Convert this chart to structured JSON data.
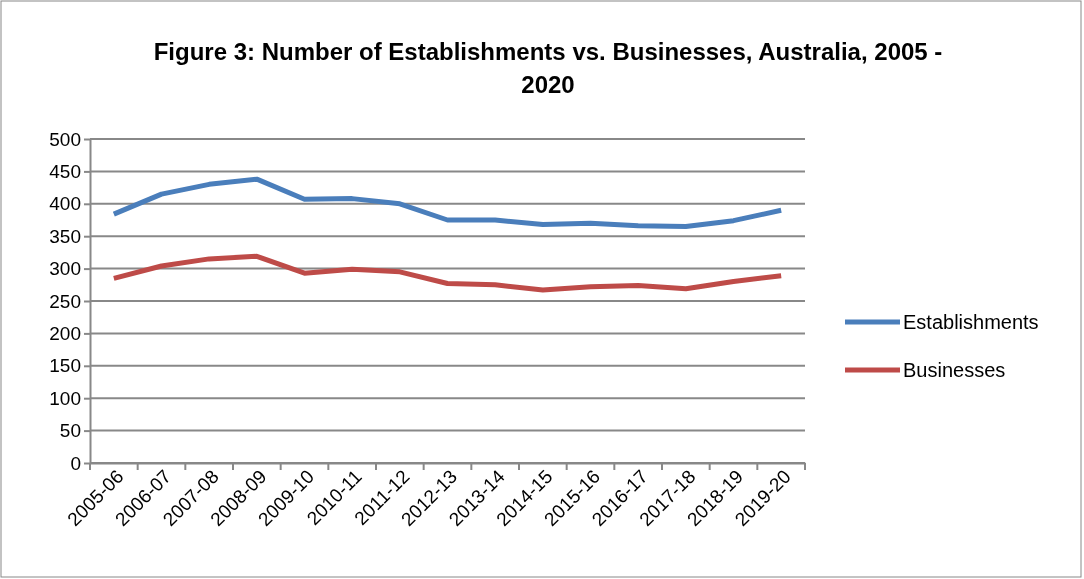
{
  "chart_data": {
    "type": "line",
    "title": "Figure 3: Number of Establishments vs. Businesses, Australia, 2005 - 2020",
    "categories": [
      "2005-06",
      "2006-07",
      "2007-08",
      "2008-09",
      "2009-10",
      "2010-11",
      "2011-12",
      "2012-13",
      "2013-14",
      "2014-15",
      "2015-16",
      "2016-17",
      "2017-18",
      "2018-19",
      "2019-20"
    ],
    "series": [
      {
        "name": "Establishments",
        "color": "#4a7ebb",
        "values": [
          384,
          415,
          430,
          438,
          407,
          408,
          400,
          375,
          375,
          368,
          370,
          366,
          365,
          374,
          390
        ]
      },
      {
        "name": "Businesses",
        "color": "#be4b48",
        "values": [
          285,
          304,
          315,
          319,
          293,
          299,
          295,
          277,
          275,
          267,
          272,
          274,
          269,
          280,
          289
        ]
      }
    ],
    "ylim": [
      0,
      500
    ],
    "yticks": [
      0,
      50,
      100,
      150,
      200,
      250,
      300,
      350,
      400,
      450,
      500
    ],
    "grid": "y",
    "legend": "right",
    "marker": "none",
    "line_style": "solid"
  }
}
